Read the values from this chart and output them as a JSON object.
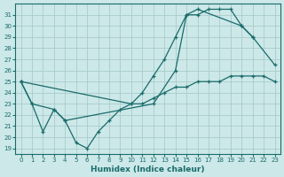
{
  "xlabel": "Humidex (Indice chaleur)",
  "bg_color": "#cce8e8",
  "grid_color": "#aacccc",
  "line_color": "#1a6b6b",
  "xlim": [
    -0.5,
    23.5
  ],
  "ylim": [
    18.5,
    32.0
  ],
  "yticks": [
    19,
    20,
    21,
    22,
    23,
    24,
    25,
    26,
    27,
    28,
    29,
    30,
    31
  ],
  "xticks": [
    0,
    1,
    2,
    3,
    4,
    5,
    6,
    7,
    8,
    9,
    10,
    11,
    12,
    13,
    14,
    15,
    16,
    17,
    18,
    19,
    20,
    21,
    22,
    23
  ],
  "series": [
    {
      "x": [
        0,
        1,
        2,
        3,
        4,
        5,
        6,
        7,
        8,
        9,
        10,
        11,
        12,
        13,
        14,
        15,
        16,
        17,
        18,
        19,
        20,
        21
      ],
      "y": [
        25.0,
        23.0,
        20.5,
        22.5,
        21.5,
        19.5,
        19.0,
        20.5,
        21.5,
        22.5,
        23.0,
        24.0,
        25.5,
        27.0,
        29.0,
        31.0,
        31.0,
        31.5,
        31.5,
        31.5,
        30.0,
        29.0
      ]
    },
    {
      "x": [
        0,
        1,
        3,
        4,
        12,
        14,
        15,
        16,
        20,
        21,
        23
      ],
      "y": [
        25.0,
        23.0,
        22.5,
        21.5,
        23.0,
        26.0,
        31.0,
        31.5,
        30.0,
        29.0,
        26.5
      ]
    },
    {
      "x": [
        0,
        10,
        11,
        12,
        13,
        14,
        15,
        16,
        17,
        18,
        19,
        20,
        21,
        22,
        23
      ],
      "y": [
        25.0,
        23.0,
        23.0,
        23.5,
        24.0,
        24.5,
        24.5,
        25.0,
        25.0,
        25.0,
        25.5,
        25.5,
        25.5,
        25.5,
        25.0
      ]
    }
  ]
}
